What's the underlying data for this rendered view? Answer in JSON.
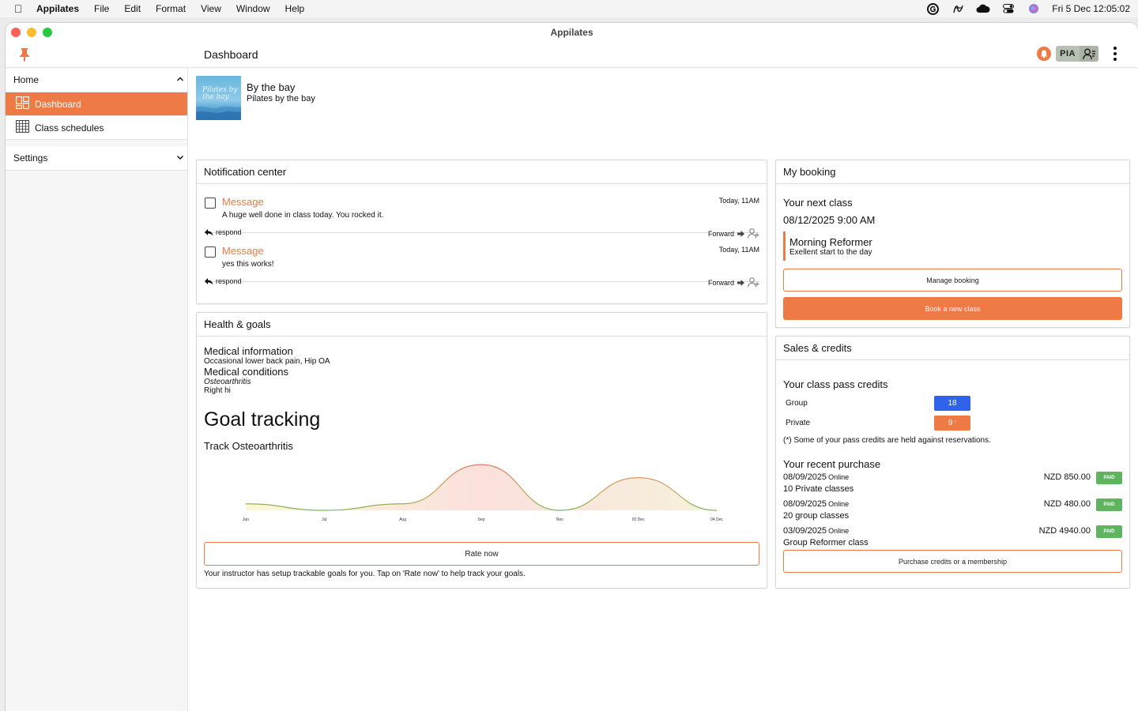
{
  "menubar": {
    "app_name": "Appilates",
    "items": [
      "File",
      "Edit",
      "Format",
      "View",
      "Window",
      "Help"
    ],
    "clock": "Fri 5 Dec  12:05:02"
  },
  "window": {
    "title": "Appilates"
  },
  "topbar": {
    "page_title": "Dashboard",
    "user_initials": "PIA"
  },
  "sidebar": {
    "home_label": "Home",
    "items": [
      {
        "label": "Dashboard",
        "icon": "dashboard-icon",
        "active": true
      },
      {
        "label": "Class schedules",
        "icon": "calendar-grid-icon",
        "active": false
      }
    ],
    "settings_label": "Settings"
  },
  "studio": {
    "name": "By the bay",
    "subtitle": "Pilates by the bay",
    "logo_text": "Pilates by the bay"
  },
  "notifications": {
    "title": "Notification center",
    "items": [
      {
        "title": "Message",
        "time": "Today, 11AM",
        "body": "A huge well done in class today. You rocked it.",
        "respond": "respond",
        "forward": "Forward"
      },
      {
        "title": "Message",
        "time": "Today, 11AM",
        "body": "yes this works!",
        "respond": "respond",
        "forward": "Forward"
      }
    ]
  },
  "health": {
    "title": "Health & goals",
    "medical_info_label": "Medical information",
    "medical_info_value": "Occasional lower back pain, Hip OA",
    "medical_conditions_label": "Medical conditions",
    "condition_name": "Osteoarthritis",
    "condition_detail": "Right hi",
    "goal_title": "Goal tracking",
    "track_title": "Track Osteoarthritis",
    "rate_button": "Rate now",
    "note": "Your instructor has setup trackable goals for you. Tap on 'Rate now' to help track your goals."
  },
  "chart_data": {
    "type": "area",
    "x": [
      "Jun",
      "Jul",
      "Aug",
      "Sep",
      "Nov",
      "02 Dec",
      "04 Dec"
    ],
    "values": [
      1,
      0,
      1,
      7,
      0,
      5,
      0
    ],
    "ylim": [
      0,
      7.5
    ],
    "grid": false,
    "colors": {
      "low": "#e4e08a",
      "mid": "#8bbf6a",
      "high": "#e79080"
    }
  },
  "booking": {
    "title": "My booking",
    "next_label": "Your next class",
    "datetime": "08/12/2025 9:00 AM",
    "class_name": "Morning Reformer",
    "class_desc": "Exellent start to the day",
    "manage_button": "Manage booking",
    "book_button": "Book a new class"
  },
  "sales": {
    "title": "Sales & credits",
    "credits_label": "Your class pass credits",
    "credits": [
      {
        "label": "Group",
        "value": "18",
        "color": "#2f63ea"
      },
      {
        "label": "Private",
        "value": "9",
        "marker": "*",
        "color": "#ee7a45"
      }
    ],
    "credits_note": "(*) Some of your pass credits are held against reservations.",
    "recent_label": "Your recent purchase",
    "purchases": [
      {
        "date": "08/09/2025",
        "channel": "Online",
        "desc": "10 Private classes",
        "amount": "NZD 850.00",
        "status": "PAID"
      },
      {
        "date": "08/09/2025",
        "channel": "Online",
        "desc": "20 group classes",
        "amount": "NZD 480.00",
        "status": "PAID"
      },
      {
        "date": "03/09/2025",
        "channel": "Online",
        "desc": "Group Reformer class",
        "amount": "NZD 4940.00",
        "status": "PAID"
      }
    ],
    "purchase_button": "Purchase credits or a membership"
  },
  "colors": {
    "accent": "#ee7a45",
    "blue": "#2f63ea",
    "paid": "#5fb55f"
  }
}
